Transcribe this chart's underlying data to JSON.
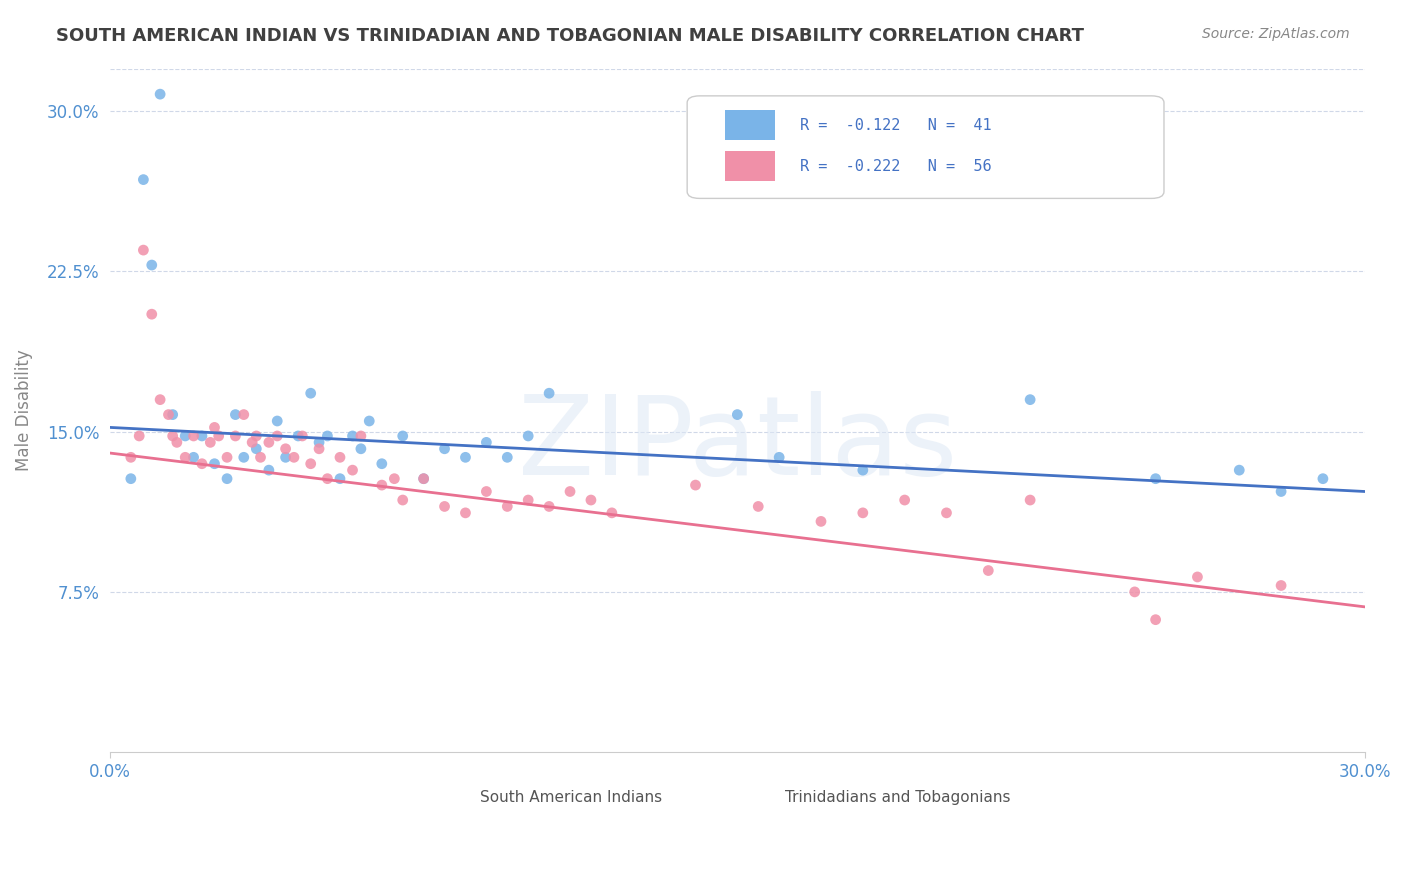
{
  "title": "SOUTH AMERICAN INDIAN VS TRINIDADIAN AND TOBAGONIAN MALE DISABILITY CORRELATION CHART",
  "source": "Source: ZipAtlas.com",
  "ylabel": "Male Disability",
  "xlabel": "",
  "xlim": [
    0.0,
    0.3
  ],
  "ylim": [
    0.0,
    0.32
  ],
  "xtick_labels": [
    "0.0%",
    "30.0%"
  ],
  "ytick_labels": [
    "7.5%",
    "15.0%",
    "22.5%",
    "30.0%"
  ],
  "ytick_positions": [
    0.075,
    0.15,
    0.225,
    0.3
  ],
  "blue_scatter": [
    [
      0.005,
      0.128
    ],
    [
      0.008,
      0.268
    ],
    [
      0.01,
      0.228
    ],
    [
      0.012,
      0.308
    ],
    [
      0.015,
      0.158
    ],
    [
      0.018,
      0.148
    ],
    [
      0.02,
      0.138
    ],
    [
      0.022,
      0.148
    ],
    [
      0.025,
      0.135
    ],
    [
      0.028,
      0.128
    ],
    [
      0.03,
      0.158
    ],
    [
      0.032,
      0.138
    ],
    [
      0.035,
      0.142
    ],
    [
      0.038,
      0.132
    ],
    [
      0.04,
      0.155
    ],
    [
      0.042,
      0.138
    ],
    [
      0.045,
      0.148
    ],
    [
      0.048,
      0.168
    ],
    [
      0.05,
      0.145
    ],
    [
      0.052,
      0.148
    ],
    [
      0.055,
      0.128
    ],
    [
      0.058,
      0.148
    ],
    [
      0.06,
      0.142
    ],
    [
      0.062,
      0.155
    ],
    [
      0.065,
      0.135
    ],
    [
      0.07,
      0.148
    ],
    [
      0.075,
      0.128
    ],
    [
      0.08,
      0.142
    ],
    [
      0.085,
      0.138
    ],
    [
      0.09,
      0.145
    ],
    [
      0.095,
      0.138
    ],
    [
      0.1,
      0.148
    ],
    [
      0.105,
      0.168
    ],
    [
      0.15,
      0.158
    ],
    [
      0.16,
      0.138
    ],
    [
      0.18,
      0.132
    ],
    [
      0.22,
      0.165
    ],
    [
      0.25,
      0.128
    ],
    [
      0.27,
      0.132
    ],
    [
      0.28,
      0.122
    ],
    [
      0.29,
      0.128
    ]
  ],
  "pink_scatter": [
    [
      0.005,
      0.138
    ],
    [
      0.007,
      0.148
    ],
    [
      0.008,
      0.235
    ],
    [
      0.01,
      0.205
    ],
    [
      0.012,
      0.165
    ],
    [
      0.014,
      0.158
    ],
    [
      0.015,
      0.148
    ],
    [
      0.016,
      0.145
    ],
    [
      0.018,
      0.138
    ],
    [
      0.02,
      0.148
    ],
    [
      0.022,
      0.135
    ],
    [
      0.024,
      0.145
    ],
    [
      0.025,
      0.152
    ],
    [
      0.026,
      0.148
    ],
    [
      0.028,
      0.138
    ],
    [
      0.03,
      0.148
    ],
    [
      0.032,
      0.158
    ],
    [
      0.034,
      0.145
    ],
    [
      0.035,
      0.148
    ],
    [
      0.036,
      0.138
    ],
    [
      0.038,
      0.145
    ],
    [
      0.04,
      0.148
    ],
    [
      0.042,
      0.142
    ],
    [
      0.044,
      0.138
    ],
    [
      0.046,
      0.148
    ],
    [
      0.048,
      0.135
    ],
    [
      0.05,
      0.142
    ],
    [
      0.052,
      0.128
    ],
    [
      0.055,
      0.138
    ],
    [
      0.058,
      0.132
    ],
    [
      0.06,
      0.148
    ],
    [
      0.065,
      0.125
    ],
    [
      0.068,
      0.128
    ],
    [
      0.07,
      0.118
    ],
    [
      0.075,
      0.128
    ],
    [
      0.08,
      0.115
    ],
    [
      0.085,
      0.112
    ],
    [
      0.09,
      0.122
    ],
    [
      0.095,
      0.115
    ],
    [
      0.1,
      0.118
    ],
    [
      0.105,
      0.115
    ],
    [
      0.11,
      0.122
    ],
    [
      0.115,
      0.118
    ],
    [
      0.12,
      0.112
    ],
    [
      0.14,
      0.125
    ],
    [
      0.155,
      0.115
    ],
    [
      0.17,
      0.108
    ],
    [
      0.18,
      0.112
    ],
    [
      0.19,
      0.118
    ],
    [
      0.2,
      0.112
    ],
    [
      0.21,
      0.085
    ],
    [
      0.22,
      0.118
    ],
    [
      0.245,
      0.075
    ],
    [
      0.25,
      0.062
    ],
    [
      0.26,
      0.082
    ],
    [
      0.28,
      0.078
    ]
  ],
  "blue_line_x": [
    0.0,
    0.3
  ],
  "blue_line_y": [
    0.152,
    0.122
  ],
  "pink_line_x": [
    0.0,
    0.3
  ],
  "pink_line_y": [
    0.14,
    0.068
  ],
  "scatter_blue_color": "#7ab4e8",
  "scatter_pink_color": "#f090a8",
  "line_blue_color": "#4472c4",
  "line_pink_color": "#e87090",
  "watermark": "ZIPatlas",
  "background_color": "#ffffff",
  "grid_color": "#d0d8e8",
  "title_color": "#404040",
  "tick_label_color": "#5090d0"
}
